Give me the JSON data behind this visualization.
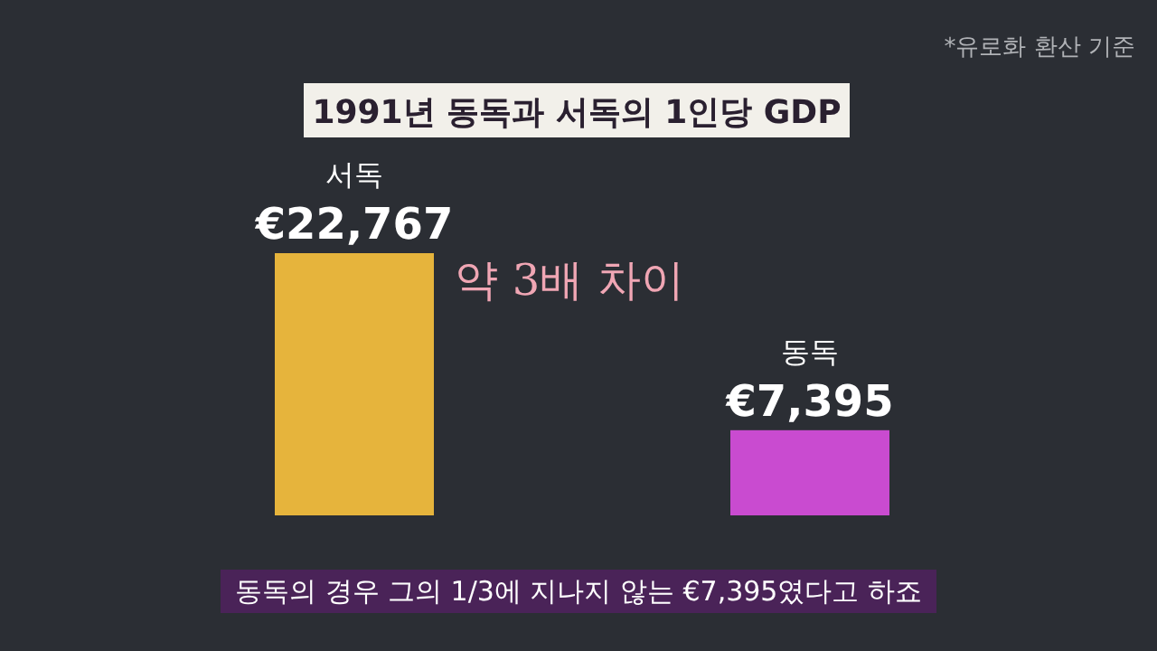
{
  "chart_data": {
    "type": "bar",
    "title": "1991년 동독과 서독의 1인당 GDP",
    "categories": [
      "서독",
      "동독"
    ],
    "values": [
      22767,
      7395
    ],
    "colors": [
      "#e6b43c",
      "#c94bd0"
    ],
    "value_labels": [
      "€22,767",
      "€7,395"
    ],
    "annotations": [
      "*유로화 환산 기준",
      "약 3배 차이",
      "동독의 경우 그의 1/3에 지나지 않는 €7,395였다고 하죠"
    ]
  }
}
